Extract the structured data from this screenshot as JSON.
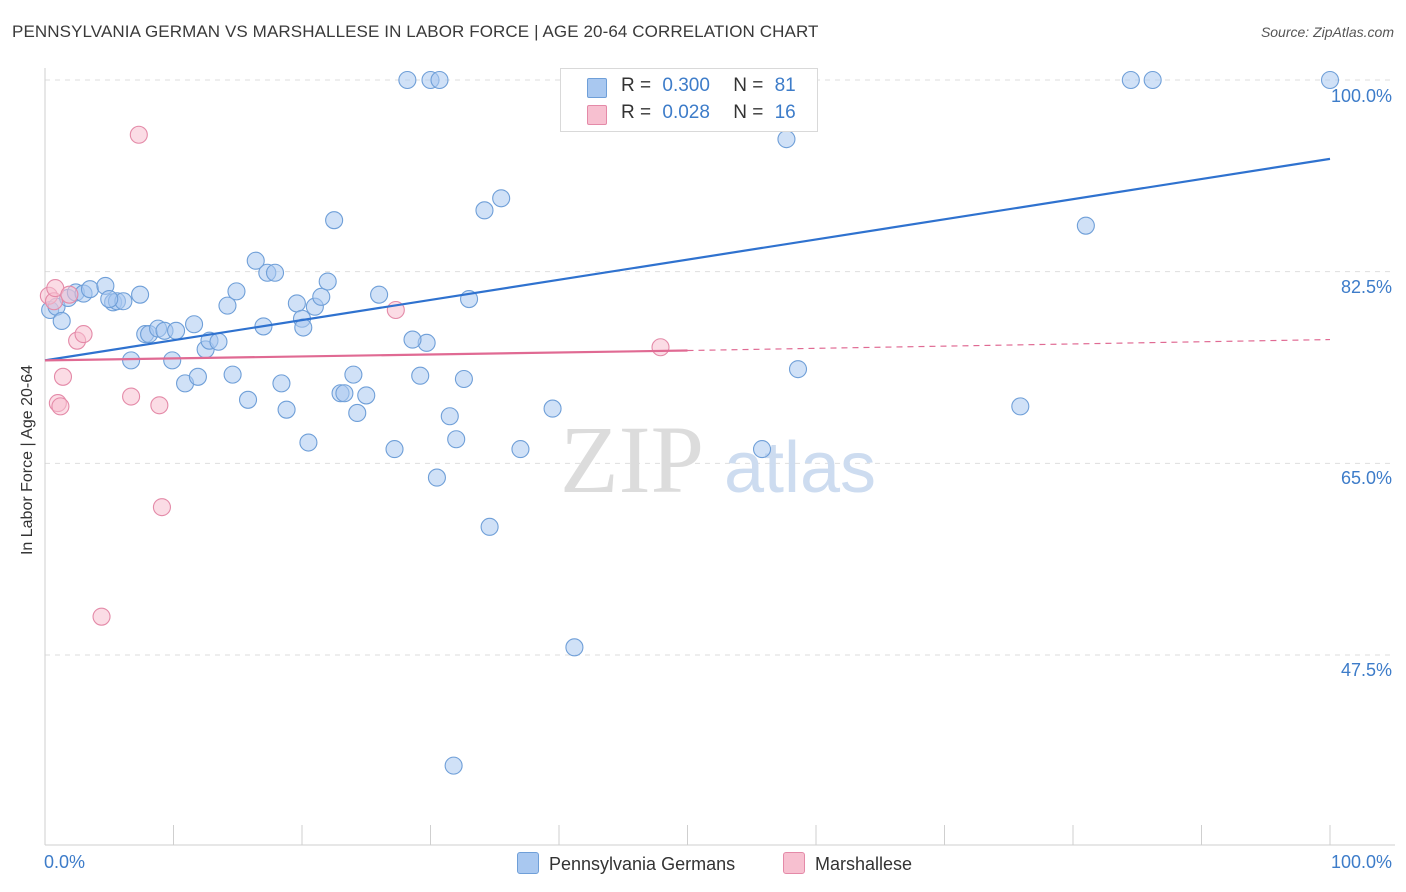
{
  "title": "PENNSYLVANIA GERMAN VS MARSHALLESE IN LABOR FORCE | AGE 20-64 CORRELATION CHART",
  "source": "Source: ZipAtlas.com",
  "watermark": {
    "zip": "ZIP",
    "atlas": "atlas"
  },
  "legend": {
    "rows": [
      {
        "r_label": "R =",
        "r_value": "0.300",
        "n_label": "N =",
        "n_value": "81",
        "color": "#a9c8f0",
        "border": "#6f9fd8"
      },
      {
        "r_label": "R =",
        "r_value": "0.028",
        "n_label": "N =",
        "n_value": "16",
        "color": "#f7c0d0",
        "border": "#e48aa8"
      }
    ]
  },
  "bottom_legend": [
    {
      "label": "Pennsylvania Germans",
      "color": "#a9c8f0",
      "border": "#6f9fd8"
    },
    {
      "label": "Marshallese",
      "color": "#f7c0d0",
      "border": "#e48aa8"
    }
  ],
  "chart_data": {
    "type": "scatter",
    "title": "PENNSYLVANIA GERMAN VS MARSHALLESE IN LABOR FORCE | AGE 20-64 CORRELATION CHART",
    "xlabel": "",
    "ylabel": "In Labor Force | Age 20-64",
    "xlim": [
      0,
      100
    ],
    "ylim": [
      30,
      102
    ],
    "x_tick_labels": [
      "0.0%",
      "100.0%"
    ],
    "y_ticks": [
      47.5,
      65.0,
      82.5,
      100.0
    ],
    "y_tick_labels": [
      "47.5%",
      "65.0%",
      "82.5%",
      "100.0%"
    ],
    "grid": "horizontal dashed",
    "legend_position": "top-center",
    "series": [
      {
        "name": "Pennsylvania Germans",
        "color": "#6f9fd8",
        "fill": "#a9c8f0",
        "trend": {
          "x": [
            0,
            100
          ],
          "y": [
            74.4,
            92.8
          ]
        },
        "points": [
          [
            0.4,
            79.0
          ],
          [
            0.9,
            79.3
          ],
          [
            1.3,
            78.0
          ],
          [
            1.8,
            80.1
          ],
          [
            2.4,
            80.6
          ],
          [
            3.0,
            80.5
          ],
          [
            3.5,
            80.9
          ],
          [
            4.7,
            81.2
          ],
          [
            5.3,
            79.7
          ],
          [
            5.6,
            79.8
          ],
          [
            6.1,
            79.8
          ],
          [
            7.4,
            80.4
          ],
          [
            6.7,
            74.4
          ],
          [
            7.8,
            76.8
          ],
          [
            8.1,
            76.8
          ],
          [
            8.8,
            77.3
          ],
          [
            9.3,
            77.1
          ],
          [
            10.2,
            77.1
          ],
          [
            9.9,
            74.4
          ],
          [
            10.9,
            72.3
          ],
          [
            11.6,
            77.7
          ],
          [
            11.9,
            72.9
          ],
          [
            12.5,
            75.4
          ],
          [
            12.8,
            76.2
          ],
          [
            13.5,
            76.1
          ],
          [
            14.2,
            79.4
          ],
          [
            14.6,
            73.1
          ],
          [
            14.9,
            80.7
          ],
          [
            15.8,
            70.8
          ],
          [
            16.4,
            83.5
          ],
          [
            17.0,
            77.5
          ],
          [
            17.3,
            82.4
          ],
          [
            17.9,
            82.4
          ],
          [
            18.4,
            72.3
          ],
          [
            18.8,
            69.9
          ],
          [
            19.6,
            79.6
          ],
          [
            20.0,
            78.2
          ],
          [
            20.5,
            66.9
          ],
          [
            21.0,
            79.3
          ],
          [
            21.5,
            80.2
          ],
          [
            22.0,
            81.6
          ],
          [
            22.5,
            87.2
          ],
          [
            23.0,
            71.4
          ],
          [
            23.3,
            71.4
          ],
          [
            24.0,
            73.1
          ],
          [
            24.3,
            69.6
          ],
          [
            25.0,
            71.2
          ],
          [
            26.0,
            80.4
          ],
          [
            27.2,
            66.3
          ],
          [
            28.2,
            100.0
          ],
          [
            29.2,
            73.0
          ],
          [
            29.7,
            76.0
          ],
          [
            30.0,
            100.0
          ],
          [
            30.7,
            100.0
          ],
          [
            30.5,
            63.7
          ],
          [
            31.5,
            69.3
          ],
          [
            32.0,
            67.2
          ],
          [
            32.6,
            72.7
          ],
          [
            34.2,
            88.1
          ],
          [
            34.6,
            59.2
          ],
          [
            35.5,
            89.2
          ],
          [
            37.0,
            66.3
          ],
          [
            39.5,
            70.0
          ],
          [
            41.2,
            48.2
          ],
          [
            41.9,
            100.0
          ],
          [
            45.0,
            100.0
          ],
          [
            46.8,
            100.0
          ],
          [
            54.4,
            96.5
          ],
          [
            55.8,
            66.3
          ],
          [
            57.7,
            94.6
          ],
          [
            58.6,
            73.6
          ],
          [
            75.9,
            70.2
          ],
          [
            81.0,
            86.7
          ],
          [
            84.5,
            100.0
          ],
          [
            86.2,
            100.0
          ],
          [
            100.0,
            100.0
          ],
          [
            31.8,
            37.4
          ],
          [
            28.6,
            76.3
          ],
          [
            33.0,
            80.0
          ],
          [
            20.1,
            77.4
          ],
          [
            5.0,
            80.0
          ]
        ]
      },
      {
        "name": "Marshallese",
        "color": "#e48aa8",
        "fill": "#f7c0d0",
        "trend": {
          "x": [
            0,
            50
          ],
          "y": [
            74.4,
            75.3
          ],
          "dashed_x": [
            50,
            100
          ],
          "dashed_y": [
            75.3,
            76.3
          ]
        },
        "points": [
          [
            0.3,
            80.3
          ],
          [
            0.7,
            79.8
          ],
          [
            0.8,
            81.0
          ],
          [
            1.0,
            70.5
          ],
          [
            1.2,
            70.2
          ],
          [
            1.4,
            72.9
          ],
          [
            1.9,
            80.4
          ],
          [
            2.5,
            76.2
          ],
          [
            3.0,
            76.8
          ],
          [
            4.4,
            51.0
          ],
          [
            6.7,
            71.1
          ],
          [
            7.3,
            95.0
          ],
          [
            8.9,
            70.3
          ],
          [
            9.1,
            61.0
          ],
          [
            27.3,
            79.0
          ],
          [
            47.9,
            75.6
          ]
        ]
      }
    ]
  }
}
